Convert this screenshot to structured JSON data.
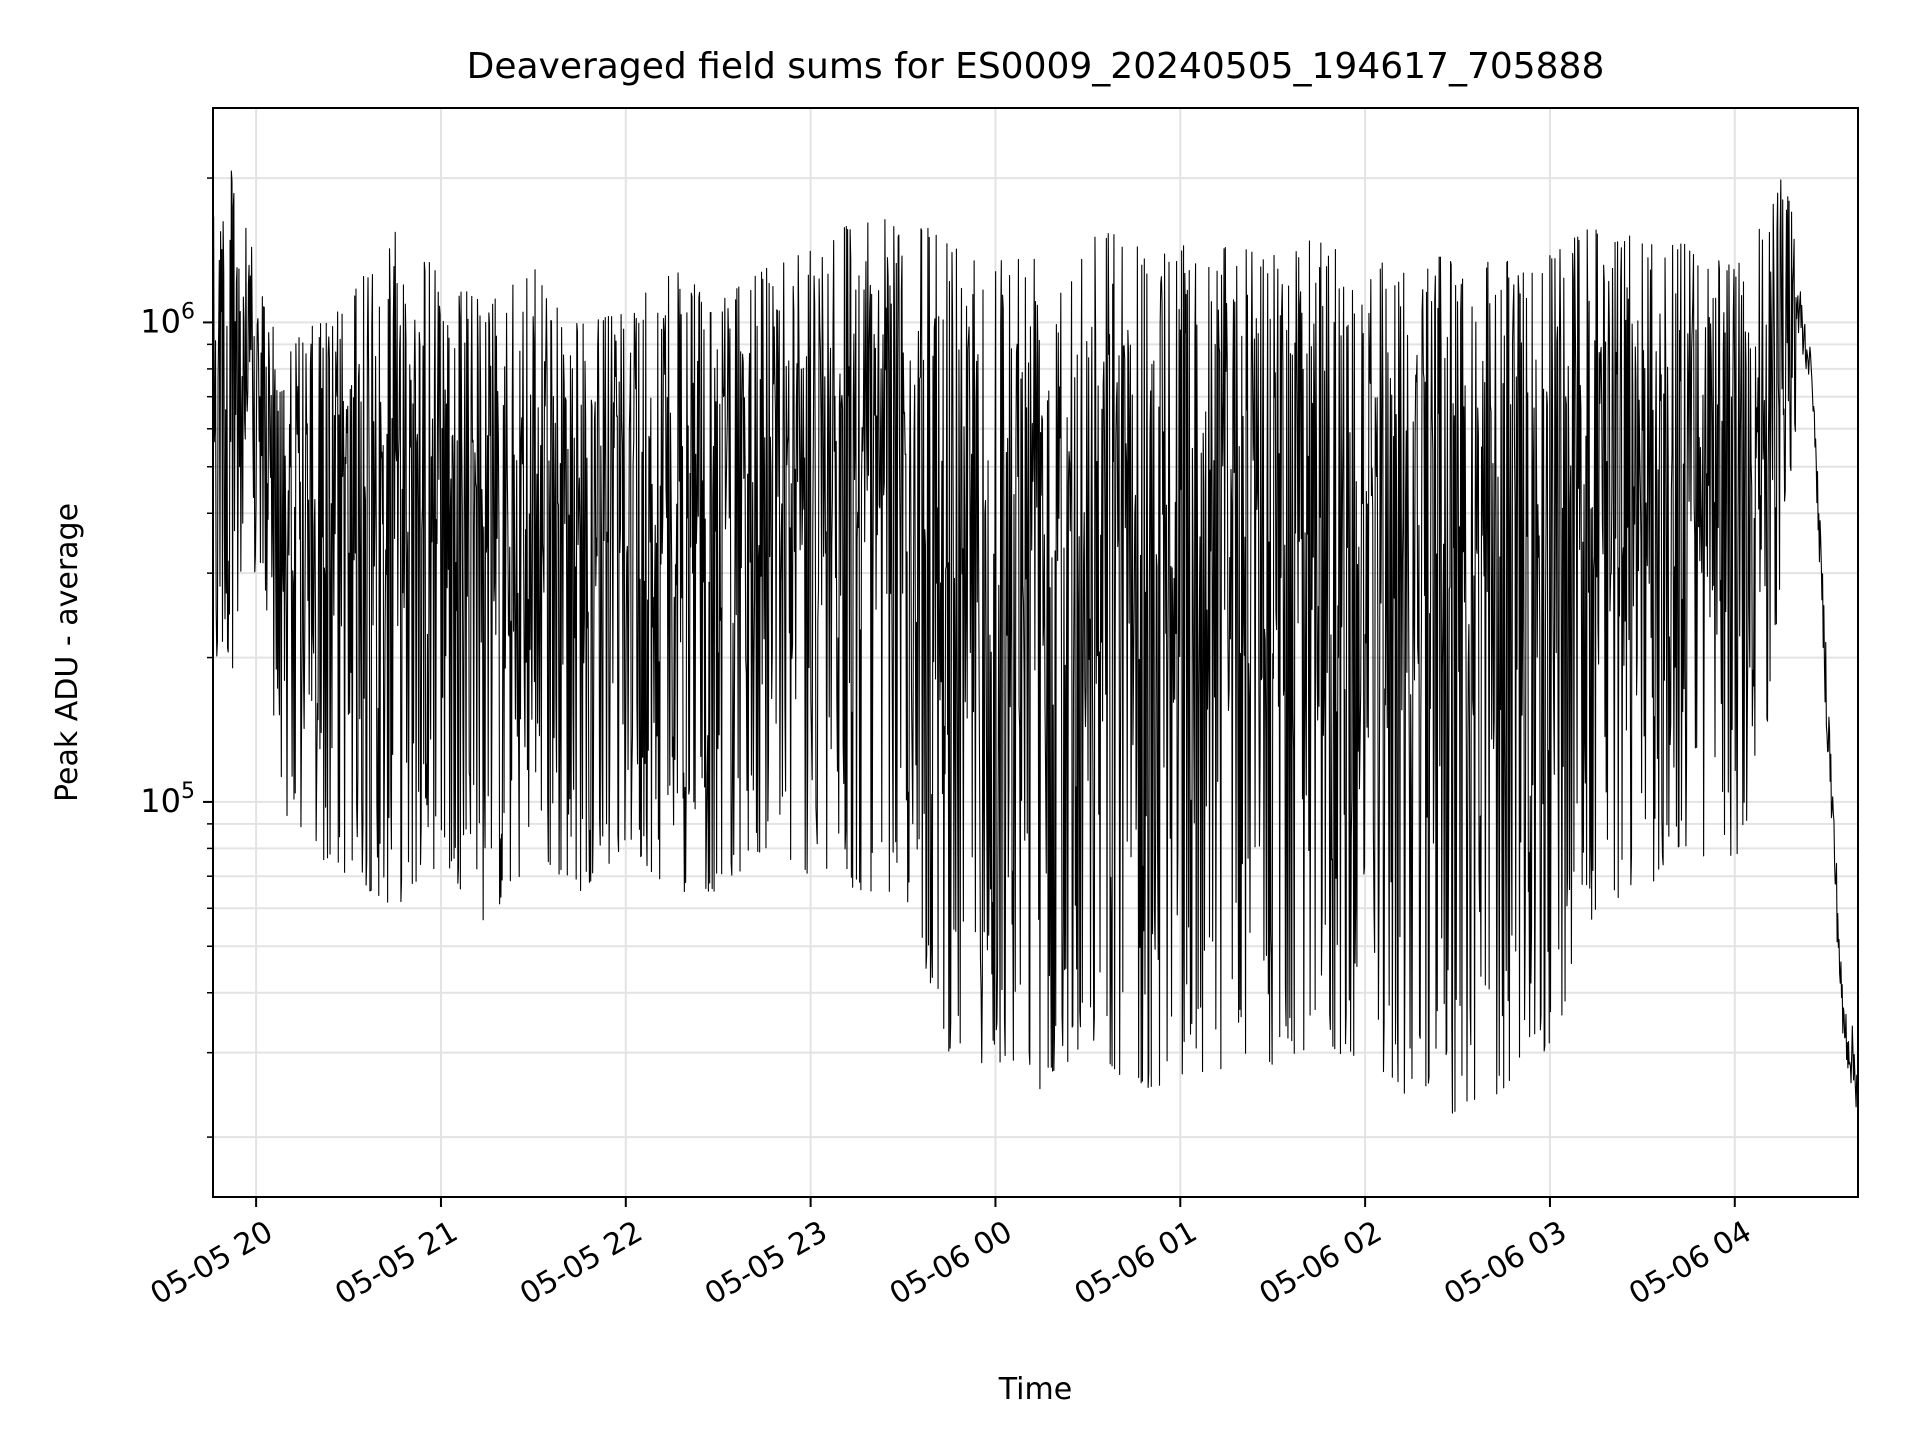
{
  "chart_data": {
    "type": "line",
    "title": "Deaveraged field sums for ES0009_20240505_194617_705888",
    "xlabel": "Time",
    "ylabel": "Peak ADU - average",
    "y_scale": "log",
    "xlim": [
      "2024-05-05 19:46",
      "2024-05-06 04:40"
    ],
    "ylim": [
      15000,
      2800000
    ],
    "grid": true,
    "x_ticks": [
      {
        "value": "2024-05-05 20:00",
        "label": "05-05 20"
      },
      {
        "value": "2024-05-05 21:00",
        "label": "05-05 21"
      },
      {
        "value": "2024-05-05 22:00",
        "label": "05-05 22"
      },
      {
        "value": "2024-05-05 23:00",
        "label": "05-05 23"
      },
      {
        "value": "2024-05-06 00:00",
        "label": "05-06 00"
      },
      {
        "value": "2024-05-06 01:00",
        "label": "05-06 01"
      },
      {
        "value": "2024-05-06 02:00",
        "label": "05-06 02"
      },
      {
        "value": "2024-05-06 03:00",
        "label": "05-06 03"
      },
      {
        "value": "2024-05-06 04:00",
        "label": "05-06 04"
      }
    ],
    "y_ticks": [
      {
        "value": 100000,
        "label_base": "10",
        "label_exp": "5"
      },
      {
        "value": 1000000,
        "label_base": "10",
        "label_exp": "6"
      }
    ],
    "series": [
      {
        "color": "#000000",
        "x": [
          "2024-05-05 19:46",
          "2024-05-05 19:50",
          "2024-05-05 19:55",
          "2024-05-05 20:00",
          "2024-05-05 20:10",
          "2024-05-05 20:20",
          "2024-05-05 20:30",
          "2024-05-05 20:45",
          "2024-05-05 21:00",
          "2024-05-05 21:15",
          "2024-05-05 21:30",
          "2024-05-05 21:45",
          "2024-05-05 22:00",
          "2024-05-05 22:15",
          "2024-05-05 22:30",
          "2024-05-05 22:45",
          "2024-05-05 23:00",
          "2024-05-05 23:15",
          "2024-05-05 23:30",
          "2024-05-05 23:45",
          "2024-05-06 00:00",
          "2024-05-06 00:15",
          "2024-05-06 00:30",
          "2024-05-06 00:45",
          "2024-05-06 01:00",
          "2024-05-06 01:15",
          "2024-05-06 01:30",
          "2024-05-06 01:45",
          "2024-05-06 02:00",
          "2024-05-06 02:15",
          "2024-05-06 02:30",
          "2024-05-06 02:45",
          "2024-05-06 03:00",
          "2024-05-06 03:15",
          "2024-05-06 03:30",
          "2024-05-06 03:45",
          "2024-05-06 04:00",
          "2024-05-06 04:10",
          "2024-05-06 04:15",
          "2024-05-06 04:20",
          "2024-05-06 04:25",
          "2024-05-06 04:30",
          "2024-05-06 04:35",
          "2024-05-06 04:40"
        ],
        "hi": [
          2200000,
          2000000,
          2200000,
          1200000,
          900000,
          1000000,
          1100000,
          1650000,
          1250000,
          1100000,
          1300000,
          1000000,
          1050000,
          1300000,
          1100000,
          1300000,
          1500000,
          1700000,
          1600000,
          1550000,
          1400000,
          1500000,
          1650000,
          1500000,
          1450000,
          1450000,
          1400000,
          1500000,
          1350000,
          1400000,
          1350000,
          1350000,
          1400000,
          1600000,
          1500000,
          1450000,
          1300000,
          1650000,
          2000000,
          2000000,
          900000,
          280000,
          50000,
          40000
        ],
        "lo": [
          160000,
          200000,
          180000,
          300000,
          90000,
          75000,
          70000,
          60000,
          75000,
          55000,
          75000,
          65000,
          80000,
          65000,
          65000,
          80000,
          70000,
          65000,
          65000,
          30000,
          28000,
          25000,
          32000,
          25000,
          26000,
          28000,
          28000,
          30000,
          29000,
          24000,
          22000,
          25000,
          30000,
          60000,
          65000,
          80000,
          70000,
          130000,
          300000,
          600000,
          700000,
          90000,
          25000,
          17000
        ]
      }
    ]
  }
}
